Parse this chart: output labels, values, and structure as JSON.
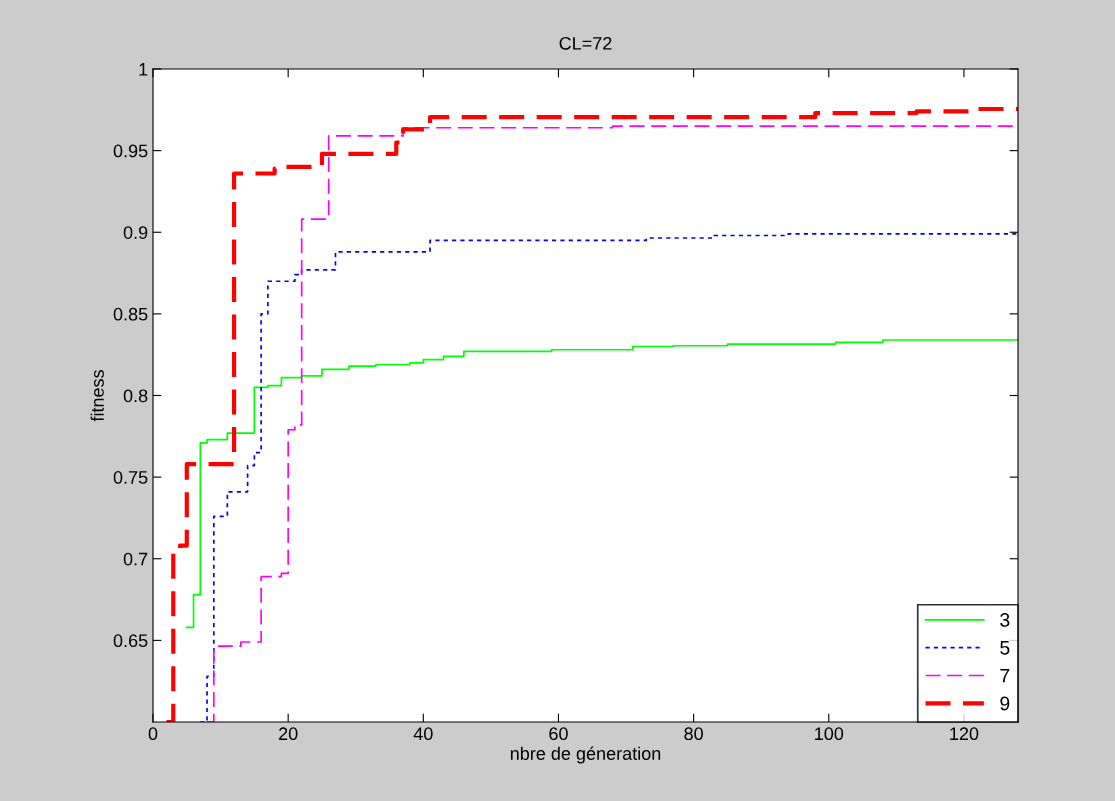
{
  "chart_data": {
    "type": "step",
    "title": "CL=72",
    "xlabel": "nbre de géneration",
    "ylabel": "fitness",
    "xlim": [
      0,
      128
    ],
    "ylim": [
      0.6,
      1
    ],
    "xticks": [
      0,
      20,
      40,
      60,
      80,
      100,
      120
    ],
    "yticks": [
      0.65,
      0.7,
      0.75,
      0.8,
      0.85,
      0.9,
      0.95,
      1
    ],
    "grid": false,
    "legend": "bottom right",
    "marker": "none",
    "series": [
      {
        "name": "3",
        "color": "#00ff00",
        "line_style": "solid",
        "x": [
          5,
          6,
          7,
          8,
          11,
          15,
          17,
          19,
          22,
          25,
          29,
          33,
          38,
          40,
          43,
          46,
          59,
          71,
          77,
          85,
          101,
          108,
          128
        ],
        "values": [
          0.658,
          0.678,
          0.771,
          0.773,
          0.777,
          0.805,
          0.806,
          0.811,
          0.812,
          0.816,
          0.818,
          0.819,
          0.82,
          0.822,
          0.824,
          0.827,
          0.828,
          0.83,
          0.8305,
          0.8315,
          0.8325,
          0.834,
          0.834
        ]
      },
      {
        "name": "5",
        "color": "#0000ff",
        "line_style": "dotted",
        "x": [
          7,
          8,
          9,
          11,
          14,
          15,
          16,
          17,
          21,
          22,
          27,
          41,
          73,
          83,
          94,
          128
        ],
        "values": [
          0.6,
          0.628,
          0.726,
          0.741,
          0.757,
          0.765,
          0.85,
          0.87,
          0.874,
          0.877,
          0.888,
          0.895,
          0.8965,
          0.898,
          0.899,
          0.899
        ]
      },
      {
        "name": "7",
        "color": "#ff00ff",
        "line_style": "dashed",
        "x": [
          8,
          9,
          13,
          16,
          19,
          20,
          21,
          22,
          26,
          37,
          68,
          128
        ],
        "values": [
          0.6,
          0.6465,
          0.649,
          0.689,
          0.691,
          0.779,
          0.782,
          0.908,
          0.959,
          0.964,
          0.965,
          0.965
        ]
      },
      {
        "name": "9",
        "color": "#ff0000",
        "line_style": "dashed",
        "x": [
          2,
          3,
          4,
          5,
          12,
          18,
          19,
          25,
          36,
          37,
          41,
          98,
          113,
          122,
          128
        ],
        "values": [
          0.6,
          0.705,
          0.708,
          0.758,
          0.936,
          0.939,
          0.94,
          0.948,
          0.955,
          0.963,
          0.9705,
          0.973,
          0.974,
          0.9755,
          0.9755
        ]
      }
    ]
  }
}
